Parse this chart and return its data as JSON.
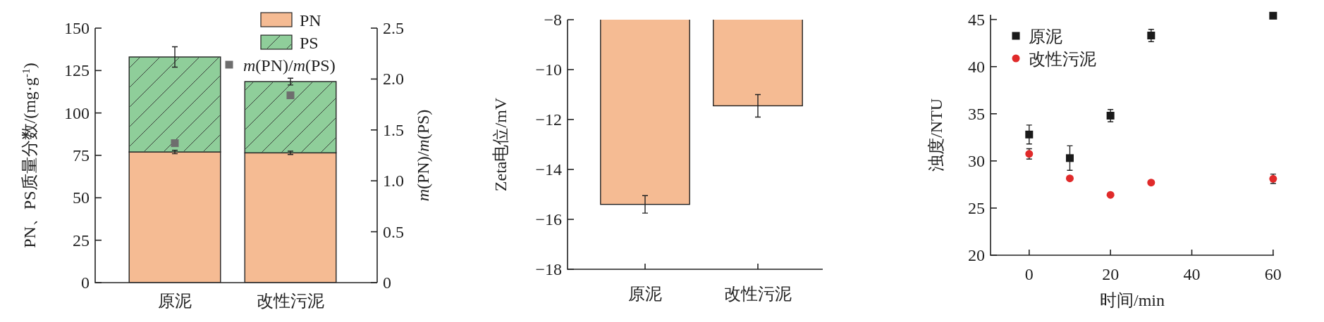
{
  "chart_data": [
    {
      "type": "bar",
      "stacked": true,
      "categories": [
        "原泥",
        "改性污泥"
      ],
      "ylabel": "PN、PS质量分数/(mg·g$^{-1}$)",
      "y2label": "*m*(PN)/*m*(PS)",
      "ylim": [
        0,
        150
      ],
      "yticks": [
        0,
        25,
        50,
        75,
        100,
        125,
        150
      ],
      "y2lim": [
        0,
        2.5
      ],
      "y2ticks": [
        0,
        0.5,
        {
          "value": 1,
          "label": "1.0"
        },
        1.5,
        {
          "value": 2,
          "label": "2.0"
        },
        2.5
      ],
      "legend": "top right",
      "series": [
        {
          "name": "PN",
          "color": "#f5bb93",
          "values": [
            77,
            76.5
          ],
          "errors": [
            1,
            1
          ]
        },
        {
          "name": "PS",
          "color": "#8fce9a",
          "values": [
            56,
            42
          ],
          "errors": [
            6,
            2
          ]
        },
        {
          "name": "*m*(PN)/*m*(PS)",
          "type": "scatter",
          "axis": "y2",
          "marker": "square",
          "color": "#6e6e6e",
          "x": [
            "原泥",
            "改性污泥"
          ],
          "values": [
            1.37,
            1.84
          ]
        }
      ]
    },
    {
      "type": "bar",
      "categories": [
        "原泥",
        "改性污泥"
      ],
      "ylabel": "Zeta电位/mV",
      "ylim": [
        -18,
        -8
      ],
      "yticks": [
        -18,
        -16,
        -14,
        -12,
        -10,
        -8
      ],
      "color": "#f5bb93",
      "values": [
        -15.4,
        -11.45
      ],
      "errors": [
        0.35,
        0.45
      ]
    },
    {
      "type": "scatter",
      "xlabel": "时间/min",
      "ylabel": "浊度/NTU",
      "xlim": [
        -9.5,
        60.2
      ],
      "ylim": [
        20,
        45.5
      ],
      "xticks": [
        0,
        20,
        40,
        60
      ],
      "yticks": [
        20,
        25,
        30,
        35,
        40,
        45
      ],
      "legend": "top left",
      "series": [
        {
          "name": "原泥",
          "color": "#1a1a1a",
          "marker": "square",
          "x": [
            0,
            10,
            20,
            30,
            60
          ],
          "values": [
            32.8,
            30.3,
            34.8,
            43.3,
            45.4
          ],
          "errors": [
            1,
            1.3,
            0.65,
            0.65,
            null
          ]
        },
        {
          "name": "改性污泥",
          "color": "#e02a2a",
          "marker": "circle",
          "x": [
            0,
            10,
            20,
            30,
            60
          ],
          "values": [
            30.75,
            28.15,
            26.4,
            27.7,
            28.1
          ],
          "errors": [
            0.55,
            null,
            null,
            null,
            0.5
          ]
        }
      ]
    }
  ]
}
